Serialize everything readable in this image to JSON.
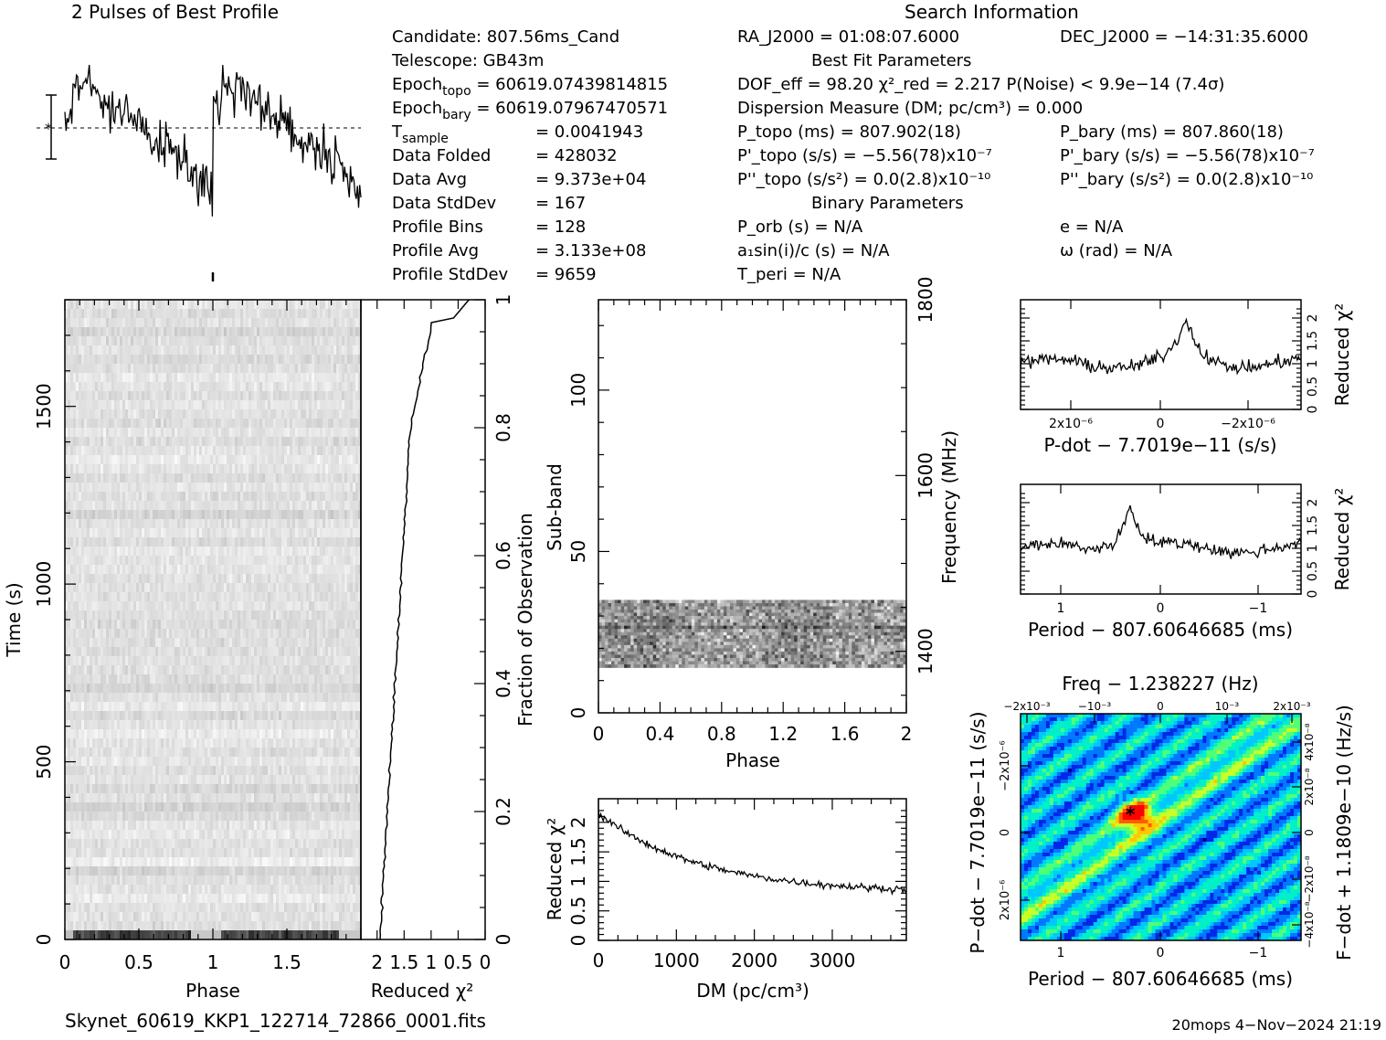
{
  "header": {
    "profile_title": "2 Pulses of Best Profile",
    "search_title": "Search Information",
    "best_fit_title": "Best Fit Parameters",
    "binary_title": "Binary Parameters"
  },
  "info_left": [
    {
      "label": "Candidate:  807.56ms_Cand"
    },
    {
      "label": "Telescope:  GB43m"
    },
    {
      "label": "Epoch",
      "sub": "topo",
      "value": " = 60619.07439814815"
    },
    {
      "label": "Epoch",
      "sub": "bary",
      "value": " = 60619.07967470571"
    },
    {
      "label": "T",
      "sub": "sample",
      "value": "= 0.0041943"
    },
    {
      "label": "Data Folded",
      "value": "= 428032"
    },
    {
      "label": "Data Avg",
      "value": "= 9.373e+04"
    },
    {
      "label": "Data StdDev",
      "value": "= 167"
    },
    {
      "label": "Profile Bins",
      "value": "= 128"
    },
    {
      "label": "Profile Avg",
      "value": "= 3.133e+08"
    },
    {
      "label": "Profile StdDev",
      "value": "= 9659"
    }
  ],
  "info_mid": {
    "ra": "RA_J2000 = 01:08:07.6000",
    "dec": "DEC_J2000 = −14:31:35.6000",
    "dof": "DOF_eff = 98.20  χ²_red = 2.217  P(Noise) < 9.9e−14  (7.4σ)",
    "dm": "Dispersion Measure (DM; pc/cm³) = 0.000",
    "p_topo": "P_topo (ms) =  807.902(18)",
    "p_bary": "P_bary (ms) =  807.860(18)",
    "pd_topo": "P'_topo (s/s) = −5.56(78)x10⁻⁷",
    "pd_bary": "P'_bary (s/s) = −5.56(78)x10⁻⁷",
    "pdd_topo": "P''_topo (s/s²) = 0.0(2.8)x10⁻¹⁰",
    "pdd_bary": "P''_bary (s/s²) = 0.0(2.8)x10⁻¹⁰",
    "p_orb": "P_orb (s) = N/A",
    "e": "e = N/A",
    "a1": "a₁sin(i)/c (s) = N/A",
    "omega": "ω (rad) = N/A",
    "t_peri": "T_peri = N/A"
  },
  "footer": {
    "filename": "Skynet_60619_KKP1_122714_72866_0001.fits",
    "stamp": "20mops  4−Nov−2024 21:19"
  },
  "chart_data": [
    {
      "type": "line",
      "name": "profile",
      "title": "2 Pulses of Best Profile",
      "x_range": [
        0,
        2
      ],
      "description_points": 256,
      "shape": "two pulses, rise near phase 0.05 and 1.05, drop near 0.85 and 1.85"
    },
    {
      "type": "heatmap",
      "name": "time-phase",
      "xlabel": "Phase",
      "ylabel": "Time (s)",
      "xticks": [
        "0",
        "0.5",
        "1",
        "1.5"
      ],
      "yticks": [
        "0",
        "500",
        "1000",
        "1500"
      ],
      "x_range": [
        0,
        2
      ],
      "y_range": [
        0,
        1800
      ]
    },
    {
      "type": "line",
      "name": "time-chi2",
      "xlabel": "Reduced χ²",
      "ylabel": "Fraction of Observation",
      "xticks": [
        "2",
        "1.5",
        "1",
        "0.5",
        "0"
      ],
      "yticks": [
        "0",
        "0.2",
        "0.4",
        "0.6",
        "0.8",
        "1"
      ],
      "x_range": [
        2.3,
        0
      ],
      "y_range": [
        0,
        1
      ]
    },
    {
      "type": "heatmap",
      "name": "subband-phase",
      "xlabel": "Phase",
      "ylabel": "Sub-band",
      "ylabel2": "Frequency (MHz)",
      "xticks": [
        "0",
        "0.4",
        "0.8",
        "1.2",
        "1.6",
        "2"
      ],
      "yticks": [
        "0",
        "50",
        "100"
      ],
      "yticks2": [
        "1400",
        "1600",
        "1800"
      ],
      "x_range": [
        0,
        2
      ],
      "y_range": [
        0,
        128
      ],
      "signal_band": [
        14,
        35
      ]
    },
    {
      "type": "line",
      "name": "dm-chi2",
      "xlabel": "DM (pc/cm³)",
      "ylabel": "Reduced χ²",
      "xticks": [
        "0",
        "1000",
        "2000",
        "3000"
      ],
      "yticks": [
        "0",
        "0.5",
        "1",
        "1.5",
        "2"
      ],
      "x_range": [
        0,
        3950
      ],
      "y_range": [
        0,
        2.4
      ]
    },
    {
      "type": "line",
      "name": "pdot-chi2",
      "xlabel": "P-dot − 7.7019e−11 (s/s)",
      "ylabel": "Reduced χ²",
      "xticks": [
        "2x10⁻⁶",
        "0",
        "−2x10⁻⁶"
      ],
      "yticks": [
        "0",
        "0.5",
        "1",
        "1.5",
        "2"
      ],
      "y_range": [
        0,
        2.4
      ]
    },
    {
      "type": "line",
      "name": "period-chi2",
      "xlabel": "Period − 807.60646685 (ms)",
      "ylabel": "Reduced χ²",
      "xticks": [
        "1",
        "0",
        "−1"
      ],
      "yticks": [
        "0",
        "0.5",
        "1",
        "1.5",
        "2"
      ],
      "y_range": [
        0,
        2.4
      ]
    },
    {
      "type": "heatmap",
      "name": "p-pdot",
      "title": "Freq − 1.238227 (Hz)",
      "xlabel": "Period − 807.60646685 (ms)",
      "ylabel": "P−dot − 7.7019e−11 (s/s)",
      "ylabel2": "F−dot + 1.1809e−10 (Hz/s)",
      "xticks": [
        "1",
        "0",
        "−1"
      ],
      "xticks_top": [
        "−2x10⁻³",
        "−10⁻³",
        "0",
        "10⁻³",
        "2x10⁻³"
      ],
      "yticks": [
        "2x10⁻⁶",
        "0",
        "−2x10⁻⁶"
      ],
      "yticks2": [
        "−4x10⁻⁸",
        "−2x10⁻⁸",
        "0",
        "2x10⁻⁸",
        "4x10⁻⁸"
      ]
    }
  ]
}
